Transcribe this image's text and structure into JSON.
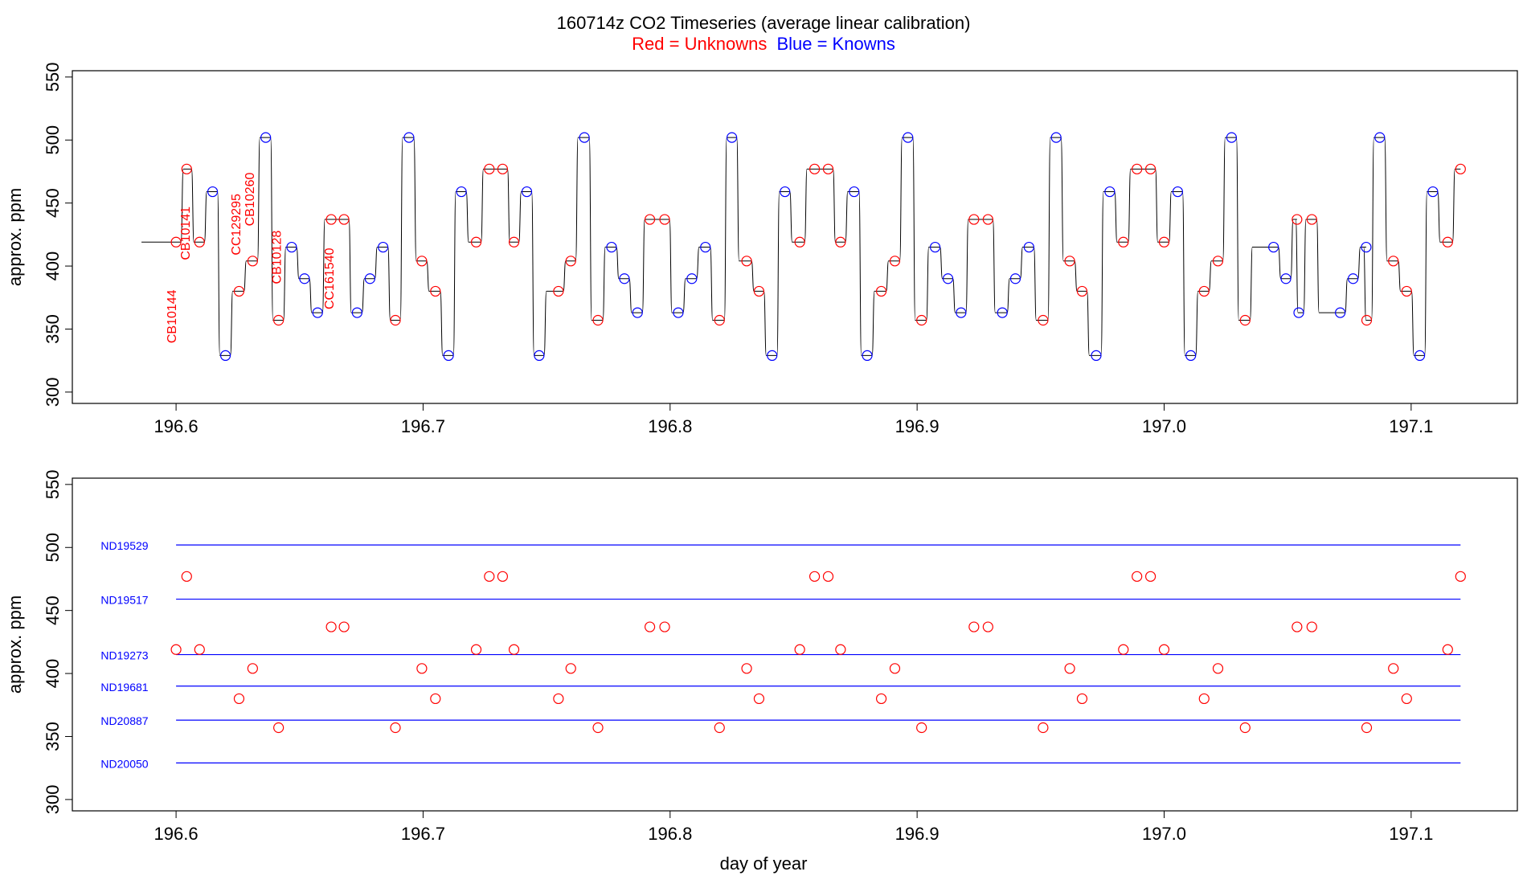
{
  "title": "160714z   CO2 Timeseries (average linear calibration)",
  "subtitle": {
    "red": "Red = Unknowns",
    "blue": "Blue = Knowns"
  },
  "colors": {
    "unknowns": "#ff0000",
    "knowns": "#0000ff",
    "trace": "#000000",
    "frame": "#000000",
    "background": "#ffffff"
  },
  "xlabel": "day of year",
  "chart_data": [
    {
      "type": "line",
      "title": "160714z   CO2 Timeseries (average linear calibration)",
      "xlabel": "",
      "ylabel": "approx. ppm",
      "xlim": [
        196.558,
        197.143
      ],
      "ylim": [
        291,
        555
      ],
      "x_ticks": [
        "196.6",
        "196.7",
        "196.8",
        "196.9",
        "197.0",
        "197.1"
      ],
      "x_tick_values": [
        196.6,
        196.7,
        196.8,
        196.9,
        197.0,
        197.1
      ],
      "y_ticks": [
        "300",
        "350",
        "400",
        "450",
        "500",
        "550"
      ],
      "y_tick_values": [
        300,
        350,
        400,
        450,
        500,
        550
      ],
      "grid": false,
      "series": [
        {
          "name": "Unknowns",
          "color": "#ff0000",
          "x": [
            196.6,
            196.6043,
            196.6095,
            196.6255,
            196.631,
            196.6415,
            196.6628,
            196.668,
            196.6888,
            196.6995,
            196.705,
            196.7215,
            196.7268,
            196.7322,
            196.7368,
            196.7548,
            196.7598,
            196.7708,
            196.7918,
            196.7978,
            196.82,
            196.831,
            196.836,
            196.8525,
            196.8585,
            196.864,
            196.869,
            196.8855,
            196.891,
            196.9018,
            196.923,
            196.9287,
            196.951,
            196.9618,
            196.9668,
            196.9835,
            196.989,
            196.9945,
            197.0,
            197.0162,
            197.0218,
            197.0328,
            197.0538,
            197.0598,
            197.082,
            197.0928,
            197.0982,
            197.1148,
            197.12
          ],
          "y": [
            419,
            477,
            419,
            380,
            404,
            357,
            437,
            437,
            357,
            404,
            380,
            419,
            477,
            477,
            419,
            380,
            404,
            357,
            437,
            437,
            357,
            404,
            380,
            419,
            477,
            477,
            419,
            380,
            404,
            357,
            437,
            437,
            357,
            404,
            380,
            419,
            477,
            477,
            419,
            380,
            404,
            357,
            437,
            437,
            357,
            404,
            380,
            419,
            477
          ]
        },
        {
          "name": "Knowns",
          "color": "#0000ff",
          "x": [
            196.6148,
            196.62,
            196.6363,
            196.6468,
            196.652,
            196.6573,
            196.6733,
            196.6785,
            196.6838,
            196.6943,
            196.7103,
            196.7155,
            196.742,
            196.747,
            196.7653,
            196.7763,
            196.7815,
            196.7868,
            196.8033,
            196.8088,
            196.8143,
            196.825,
            196.8413,
            196.8465,
            196.8745,
            196.8798,
            196.8963,
            196.9073,
            196.9125,
            196.9178,
            196.9345,
            196.9398,
            196.9453,
            196.9563,
            196.9725,
            196.978,
            197.0055,
            197.0108,
            197.0273,
            197.0443,
            197.0493,
            197.0545,
            197.0713,
            197.0765,
            197.0818,
            197.0873,
            197.1035,
            197.1088
          ],
          "y": [
            459,
            329,
            502,
            415,
            390,
            363,
            363,
            390,
            415,
            502,
            329,
            459,
            459,
            329,
            502,
            415,
            390,
            363,
            363,
            390,
            415,
            502,
            329,
            459,
            459,
            329,
            502,
            415,
            390,
            363,
            363,
            390,
            415,
            502,
            329,
            459,
            459,
            329,
            502,
            415,
            390,
            363,
            363,
            390,
            415,
            502,
            329,
            459
          ]
        }
      ],
      "annotations": [
        {
          "text": "CB10144",
          "x": 196.6,
          "y": 360,
          "color": "#ff0000"
        },
        {
          "text": "CB10141",
          "x": 196.6055,
          "y": 426,
          "color": "#ff0000"
        },
        {
          "text": "CC129295",
          "x": 196.626,
          "y": 433,
          "color": "#ff0000"
        },
        {
          "text": "CB10260",
          "x": 196.6315,
          "y": 453,
          "color": "#ff0000"
        },
        {
          "text": "CB10128",
          "x": 196.6425,
          "y": 407,
          "color": "#ff0000"
        },
        {
          "text": "CC161540",
          "x": 196.6638,
          "y": 390,
          "color": "#ff0000"
        }
      ]
    },
    {
      "type": "scatter",
      "xlabel": "day of year",
      "ylabel": "approx. ppm",
      "xlim": [
        196.558,
        197.143
      ],
      "ylim": [
        291,
        555
      ],
      "x_ticks": [
        "196.6",
        "196.7",
        "196.8",
        "196.9",
        "197.0",
        "197.1"
      ],
      "x_tick_values": [
        196.6,
        196.7,
        196.8,
        196.9,
        197.0,
        197.1
      ],
      "y_ticks": [
        "300",
        "350",
        "400",
        "450",
        "500",
        "550"
      ],
      "y_tick_values": [
        300,
        350,
        400,
        450,
        500,
        550
      ],
      "grid": false,
      "reference_lines": [
        {
          "label": "ND19529",
          "value": 502,
          "x_start": 196.6,
          "x_end": 197.12,
          "color": "#0000ff"
        },
        {
          "label": "ND19517",
          "value": 459,
          "x_start": 196.6,
          "x_end": 197.12,
          "color": "#0000ff"
        },
        {
          "label": "ND19273",
          "value": 415,
          "x_start": 196.6,
          "x_end": 197.12,
          "color": "#0000ff"
        },
        {
          "label": "ND19681",
          "value": 390,
          "x_start": 196.6,
          "x_end": 197.12,
          "color": "#0000ff"
        },
        {
          "label": "ND20887",
          "value": 363,
          "x_start": 196.6,
          "x_end": 197.12,
          "color": "#0000ff"
        },
        {
          "label": "ND20050",
          "value": 329,
          "x_start": 196.6,
          "x_end": 197.12,
          "color": "#0000ff"
        }
      ],
      "series": [
        {
          "name": "Unknowns",
          "color": "#ff0000",
          "x": [
            196.6,
            196.6043,
            196.6095,
            196.6255,
            196.631,
            196.6415,
            196.6628,
            196.668,
            196.6888,
            196.6995,
            196.705,
            196.7215,
            196.7268,
            196.7322,
            196.7368,
            196.7548,
            196.7598,
            196.7708,
            196.7918,
            196.7978,
            196.82,
            196.831,
            196.836,
            196.8525,
            196.8585,
            196.864,
            196.869,
            196.8855,
            196.891,
            196.9018,
            196.923,
            196.9287,
            196.951,
            196.9618,
            196.9668,
            196.9835,
            196.989,
            196.9945,
            197.0,
            197.0162,
            197.0218,
            197.0328,
            197.0538,
            197.0598,
            197.082,
            197.0928,
            197.0982,
            197.1148,
            197.12
          ],
          "y": [
            419,
            477,
            419,
            380,
            404,
            357,
            437,
            437,
            357,
            404,
            380,
            419,
            477,
            477,
            419,
            380,
            404,
            357,
            437,
            437,
            357,
            404,
            380,
            419,
            477,
            477,
            419,
            380,
            404,
            357,
            437,
            437,
            357,
            404,
            380,
            419,
            477,
            477,
            419,
            380,
            404,
            357,
            437,
            437,
            357,
            404,
            380,
            419,
            477
          ]
        }
      ]
    }
  ]
}
